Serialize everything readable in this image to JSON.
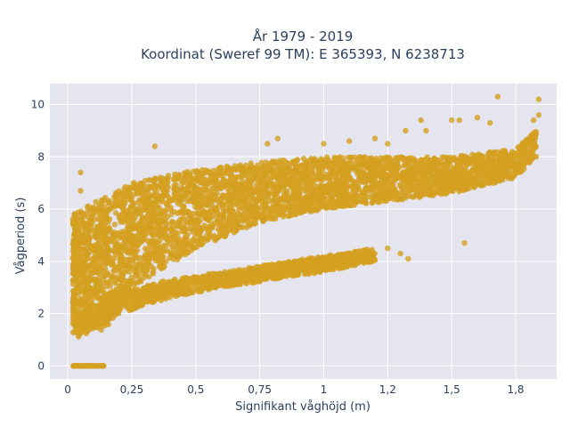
{
  "chart_data": {
    "type": "scatter",
    "title_line1": "År 1979 - 2019",
    "title_line2": "Koordinat (Sweref 99 TM): E 365393, N 6238713",
    "xlabel": "Signifikant våghöjd (m)",
    "ylabel": "Vågperiod (s)",
    "xlim": [
      -0.07,
      1.91
    ],
    "ylim": [
      -0.5,
      10.8
    ],
    "x_ticks": [
      {
        "value": 0,
        "label": "0"
      },
      {
        "value": 0.25,
        "label": "0,25"
      },
      {
        "value": 0.5,
        "label": "0,5"
      },
      {
        "value": 0.75,
        "label": "0,75"
      },
      {
        "value": 1,
        "label": "1"
      },
      {
        "value": 1.25,
        "label": "1,2"
      },
      {
        "value": 1.5,
        "label": "1,5"
      },
      {
        "value": 1.75,
        "label": "1,8"
      }
    ],
    "y_ticks": [
      {
        "value": 0,
        "label": "0"
      },
      {
        "value": 2,
        "label": "2"
      },
      {
        "value": 4,
        "label": "4"
      },
      {
        "value": 6,
        "label": "6"
      },
      {
        "value": 8,
        "label": "8"
      },
      {
        "value": 10,
        "label": "10"
      }
    ],
    "grid": true,
    "marker_color": "#d4a020",
    "plot_background": "#e5e5ef",
    "regions": [
      {
        "name": "main-cloud",
        "x": [
          0.02,
          0.15,
          0.25,
          0.5,
          0.75,
          1.0,
          1.25,
          1.5,
          1.75,
          1.83
        ],
        "y_low": [
          1.2,
          1.3,
          3.0,
          4.5,
          5.5,
          6.0,
          6.3,
          6.6,
          7.2,
          8.0
        ],
        "y_high": [
          5.8,
          6.5,
          7.0,
          7.5,
          7.8,
          8.0,
          8.0,
          8.0,
          8.3,
          9.0
        ]
      },
      {
        "name": "lower-band",
        "x": [
          0.04,
          0.2,
          0.4,
          0.6,
          0.8,
          1.0,
          1.2
        ],
        "y_low": [
          1.1,
          2.0,
          2.6,
          3.0,
          3.3,
          3.6,
          4.0
        ],
        "y_high": [
          2.0,
          2.8,
          3.3,
          3.6,
          3.9,
          4.2,
          4.5
        ]
      },
      {
        "name": "zero-period",
        "x": [
          0.02,
          0.14
        ],
        "y_low": [
          0,
          0
        ],
        "y_high": [
          0,
          0
        ]
      }
    ],
    "outliers": [
      {
        "x": 0.34,
        "y": 8.4
      },
      {
        "x": 1.68,
        "y": 10.3
      },
      {
        "x": 1.84,
        "y": 10.2
      },
      {
        "x": 1.5,
        "y": 9.4
      },
      {
        "x": 1.53,
        "y": 9.4
      },
      {
        "x": 1.6,
        "y": 9.5
      },
      {
        "x": 1.65,
        "y": 9.3
      },
      {
        "x": 1.4,
        "y": 9.0
      },
      {
        "x": 1.38,
        "y": 9.4
      },
      {
        "x": 1.32,
        "y": 9.0
      },
      {
        "x": 1.55,
        "y": 4.7
      },
      {
        "x": 1.3,
        "y": 4.3
      },
      {
        "x": 1.33,
        "y": 4.1
      },
      {
        "x": 1.25,
        "y": 4.5
      },
      {
        "x": 0.05,
        "y": 7.4
      },
      {
        "x": 0.05,
        "y": 6.7
      },
      {
        "x": 1.82,
        "y": 9.4
      },
      {
        "x": 1.84,
        "y": 9.6
      },
      {
        "x": 1.1,
        "y": 8.6
      },
      {
        "x": 1.0,
        "y": 8.5
      },
      {
        "x": 0.82,
        "y": 8.7
      },
      {
        "x": 0.78,
        "y": 8.5
      },
      {
        "x": 1.2,
        "y": 8.7
      },
      {
        "x": 1.25,
        "y": 8.5
      }
    ]
  }
}
